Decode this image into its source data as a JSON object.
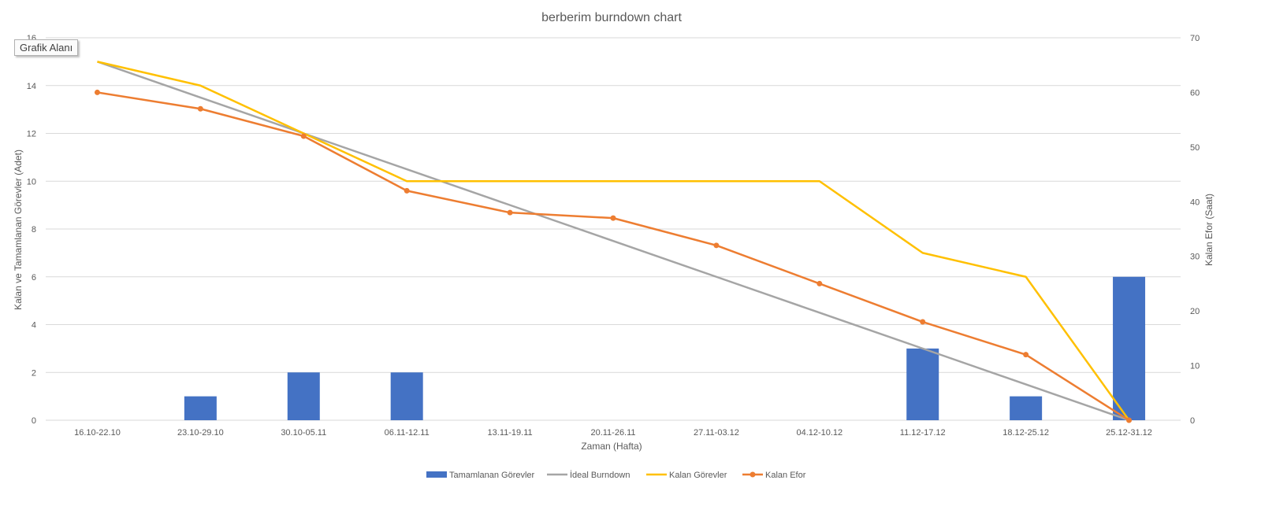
{
  "tooltip": "Grafik Alanı",
  "chart_data": {
    "type": "bar",
    "title": "berberim burndown chart",
    "xlabel": "Zaman (Hafta)",
    "ylabel": "Kalan ve Tamamlanan Görevler (Adet)",
    "y2label": "Kalan Efor (Saat)",
    "ylim": [
      0,
      16
    ],
    "y2lim": [
      0,
      70
    ],
    "yticks": [
      0,
      2,
      4,
      6,
      8,
      10,
      12,
      14,
      16
    ],
    "y2ticks": [
      0,
      10,
      20,
      30,
      40,
      50,
      60,
      70
    ],
    "grid": true,
    "legend_position": "bottom",
    "categories": [
      "16.10-22.10",
      "23.10-29.10",
      "30.10-05.11",
      "06.11-12.11",
      "13.11-19.11",
      "20.11-26.11",
      "27.11-03.12",
      "04.12-10.12",
      "11.12-17.12",
      "18.12-25.12",
      "25.12-31.12"
    ],
    "series": [
      {
        "name": "Tamamlanan Görevler",
        "type": "bar",
        "axis": "left",
        "color": "#4472C4",
        "values": [
          0,
          1,
          2,
          2,
          0,
          0,
          0,
          0,
          3,
          1,
          6
        ]
      },
      {
        "name": "İdeal Burndown",
        "type": "line",
        "axis": "left",
        "color": "#A5A5A5",
        "values": [
          15,
          13.5,
          12,
          10.5,
          9,
          7.5,
          6,
          4.5,
          3,
          1.5,
          0
        ]
      },
      {
        "name": "Kalan Görevler",
        "type": "line",
        "axis": "left",
        "color": "#FFC000",
        "values": [
          15,
          14,
          12,
          10,
          10,
          10,
          10,
          10,
          7,
          6,
          0
        ]
      },
      {
        "name": "Kalan Efor",
        "type": "line-markers",
        "axis": "right",
        "color": "#ED7D31",
        "values": [
          60,
          57,
          52,
          42,
          38,
          37,
          32,
          25,
          18,
          12,
          0
        ]
      }
    ]
  }
}
